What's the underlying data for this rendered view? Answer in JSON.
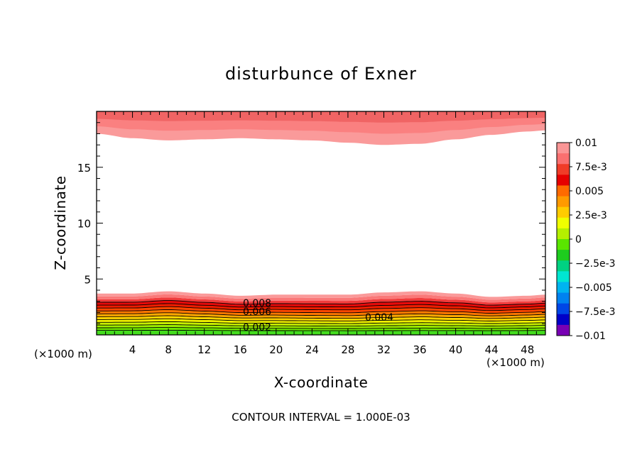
{
  "chart_data": {
    "type": "contour",
    "title": "disturbunce of Exner",
    "xlabel": "X-coordinate",
    "ylabel": "Z-coordinate",
    "x_unit_label": "(×1000 m)",
    "x_unit_label_right": "(×1000 m)",
    "footer": "CONTOUR INTERVAL = 1.000E-03",
    "xlim": [
      0,
      50
    ],
    "ylim": [
      0,
      20
    ],
    "x_ticks": [
      4,
      8,
      12,
      16,
      20,
      24,
      28,
      32,
      36,
      40,
      44,
      48
    ],
    "y_ticks": [
      5,
      10,
      15
    ],
    "contour_interval": 0.001,
    "contour_labels": [
      {
        "text": "0.008",
        "x": 18,
        "y": 2.9
      },
      {
        "text": "0.006",
        "x": 18,
        "y": 2.2
      },
      {
        "text": "0.004",
        "x": 32,
        "y": 1.5
      },
      {
        "text": "0.002",
        "x": 18,
        "y": 0.7
      }
    ],
    "lower_band_top_profile": {
      "x": [
        0,
        4,
        8,
        12,
        16,
        20,
        24,
        28,
        32,
        36,
        40,
        44,
        48,
        50
      ],
      "z": [
        3.7,
        3.7,
        3.9,
        3.7,
        3.5,
        3.6,
        3.6,
        3.6,
        3.8,
        3.9,
        3.7,
        3.4,
        3.5,
        3.6
      ]
    },
    "upper_band_bottom_profile": {
      "x": [
        0,
        4,
        8,
        12,
        16,
        20,
        24,
        28,
        32,
        36,
        40,
        44,
        48,
        50
      ],
      "z": [
        18.0,
        17.6,
        17.4,
        17.5,
        17.6,
        17.5,
        17.4,
        17.2,
        17.0,
        17.1,
        17.5,
        17.9,
        18.2,
        18.3
      ]
    },
    "colorbar": {
      "labels": [
        "0.01",
        "7.5e-3",
        "0.005",
        "2.5e-3",
        "0",
        "−2.5e-3",
        "−0.005",
        "−7.5e-3",
        "−0.01"
      ],
      "colors": [
        "#fa9696",
        "#fa7070",
        "#f03c28",
        "#e60000",
        "#ff6a00",
        "#ff9a00",
        "#ffcc00",
        "#f0ff00",
        "#b4f000",
        "#5ae600",
        "#1ecc1e",
        "#00d282",
        "#00e6d2",
        "#00b4f0",
        "#0082f0",
        "#0046e6",
        "#0000c8",
        "#7800b4"
      ]
    }
  }
}
